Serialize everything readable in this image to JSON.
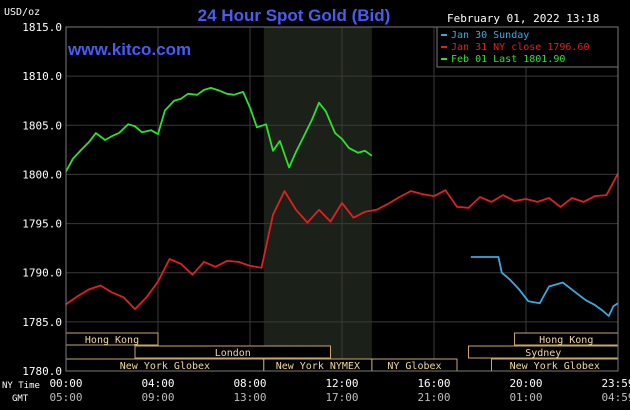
{
  "chart_data": {
    "type": "line",
    "title": "24 Hour Spot Gold (Bid)",
    "source_label": "www.kitco.com",
    "timestamp": "February 01, 2022 13:18",
    "ylabel": "USD/oz",
    "ylim": [
      1780,
      1815
    ],
    "yticks": [
      "1815.0",
      "1810.0",
      "1805.0",
      "1800.0",
      "1795.0",
      "1790.0",
      "1785.0",
      "1780.0"
    ],
    "xlim": [
      0,
      24
    ],
    "x_tick_hours": [
      0,
      4,
      8,
      12,
      16,
      20,
      24
    ],
    "x_ticks_ny": [
      "00:00",
      "04:00",
      "08:00",
      "12:00",
      "16:00",
      "20:00",
      "23:59"
    ],
    "x_ticks_gmt": [
      "05:00",
      "09:00",
      "13:00",
      "17:00",
      "21:00",
      "01:00",
      "04:59"
    ],
    "tz_labels": {
      "ny": "NY Time",
      "gmt": "GMT"
    },
    "highlight_hours": [
      8.6,
      13.3
    ],
    "series": [
      {
        "name": "Jan 30 Sunday",
        "color": "#3aa9e0",
        "x": [
          17.6,
          18.8,
          18.95,
          19.3,
          19.7,
          20.1,
          20.6,
          21.0,
          21.6,
          22.1,
          22.6,
          23.0,
          23.3,
          23.6,
          23.8,
          24.0
        ],
        "y": [
          1791.6,
          1791.6,
          1790.0,
          1789.3,
          1788.3,
          1787.1,
          1786.9,
          1788.6,
          1789.0,
          1788.1,
          1787.2,
          1786.7,
          1786.2,
          1785.6,
          1786.6,
          1786.9
        ]
      },
      {
        "name": "Jan 31 NY close 1796.60",
        "color": "#e02020",
        "x": [
          0.0,
          0.5,
          1.0,
          1.5,
          2.0,
          2.5,
          3.0,
          3.5,
          4.0,
          4.5,
          5.0,
          5.5,
          6.0,
          6.5,
          7.0,
          7.5,
          8.0,
          8.5,
          9.0,
          9.5,
          10.0,
          10.5,
          11.0,
          11.5,
          12.0,
          12.5,
          13.0,
          13.5,
          14.0,
          14.5,
          15.0,
          15.5,
          16.0,
          16.5,
          17.0,
          17.5,
          18.0,
          18.5,
          19.0,
          19.5,
          20.0,
          20.5,
          21.0,
          21.5,
          22.0,
          22.5,
          23.0,
          23.5,
          24.0
        ],
        "y": [
          1786.8,
          1787.6,
          1788.3,
          1788.7,
          1788.0,
          1787.5,
          1786.3,
          1787.5,
          1789.1,
          1791.4,
          1790.9,
          1789.8,
          1791.1,
          1790.6,
          1791.2,
          1791.1,
          1790.7,
          1790.5,
          1795.9,
          1798.3,
          1796.4,
          1795.1,
          1796.4,
          1795.2,
          1797.1,
          1795.6,
          1796.2,
          1796.4,
          1797.0,
          1797.7,
          1798.3,
          1798.0,
          1797.8,
          1798.4,
          1796.7,
          1796.6,
          1797.7,
          1797.2,
          1797.9,
          1797.3,
          1797.5,
          1797.2,
          1797.6,
          1796.7,
          1797.6,
          1797.2,
          1797.8,
          1797.9,
          1800.1
        ]
      },
      {
        "name": "Feb 01 Last 1801.90",
        "color": "#30e030",
        "x": [
          0.0,
          0.3,
          0.7,
          1.0,
          1.3,
          1.7,
          2.0,
          2.3,
          2.7,
          3.0,
          3.3,
          3.7,
          4.0,
          4.3,
          4.7,
          5.0,
          5.3,
          5.7,
          6.0,
          6.3,
          6.7,
          7.0,
          7.3,
          7.7,
          8.0,
          8.3,
          8.7,
          9.0,
          9.3,
          9.7,
          10.0,
          10.3,
          10.7,
          11.0,
          11.3,
          11.7,
          12.0,
          12.3,
          12.7,
          13.0,
          13.3
        ],
        "y": [
          1800.3,
          1801.6,
          1802.6,
          1803.3,
          1804.2,
          1803.5,
          1803.9,
          1804.2,
          1805.1,
          1804.9,
          1804.3,
          1804.5,
          1804.1,
          1806.5,
          1807.5,
          1807.7,
          1808.2,
          1808.1,
          1808.6,
          1808.8,
          1808.5,
          1808.2,
          1808.1,
          1808.4,
          1806.8,
          1804.8,
          1805.1,
          1802.4,
          1803.4,
          1800.7,
          1802.3,
          1803.7,
          1805.6,
          1807.3,
          1806.4,
          1804.2,
          1803.6,
          1802.7,
          1802.2,
          1802.4,
          1801.9
        ]
      }
    ],
    "sessions": [
      {
        "name": "Hong Kong",
        "row": 0,
        "start": 0.0,
        "end": 4.0
      },
      {
        "name": "Hong Kong",
        "row": 0,
        "start": 19.5,
        "end": 24.0
      },
      {
        "name": "London",
        "row": 1,
        "start": 3.0,
        "end": 11.5
      },
      {
        "name": "Sydney",
        "row": 1,
        "start": 17.5,
        "end": 24.0
      },
      {
        "name": "New York Globex",
        "row": 2,
        "start": 0.0,
        "end": 8.6
      },
      {
        "name": "New York NYMEX",
        "row": 2,
        "start": 8.6,
        "end": 13.3
      },
      {
        "name": "NY Globex",
        "row": 2,
        "start": 13.3,
        "end": 17.0
      },
      {
        "name": "New York Globex",
        "row": 2,
        "start": 18.5,
        "end": 24.0
      }
    ]
  }
}
